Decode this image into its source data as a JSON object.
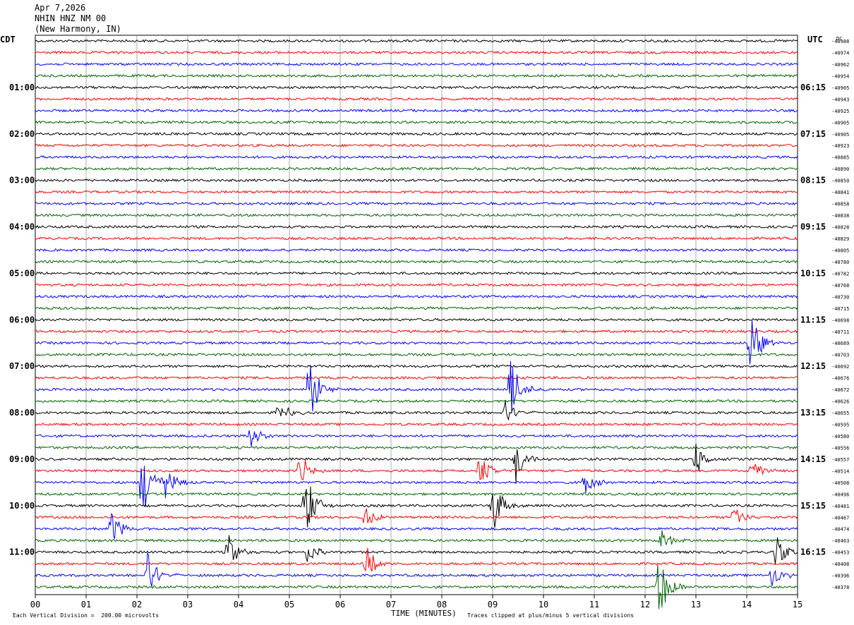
{
  "header": {
    "date": "Apr 7,2026",
    "station": "NHIN HNZ NM 00",
    "location": "(New Harmony, IN)"
  },
  "left_tz_label": "CDT",
  "right_tz_label": "UTC",
  "dc_label": "DC",
  "footer": {
    "scale_note": "Each Vertical Division =  200.00 microvolts",
    "xaxis_title": "TIME (MINUTES)",
    "clip_note": "Traces clipped at plus/minus 5 vertical divisions"
  },
  "colors": [
    "#000000",
    "#ff0000",
    "#0000ff",
    "#006400"
  ],
  "chart_data": {
    "type": "line",
    "x_unit": "minutes",
    "xlim": [
      0,
      15
    ],
    "x_ticks": [
      "00",
      "01",
      "02",
      "03",
      "04",
      "05",
      "06",
      "07",
      "08",
      "09",
      "10",
      "11",
      "12",
      "13",
      "14",
      "15"
    ],
    "trace_minutes": 15,
    "left_hour_labels": [
      "01:00",
      "02:00",
      "03:00",
      "04:00",
      "05:00",
      "06:00",
      "07:00",
      "08:00",
      "09:00",
      "10:00",
      "11:00"
    ],
    "right_hour_labels": [
      "06:15",
      "07:15",
      "08:15",
      "09:15",
      "10:15",
      "11:15",
      "12:15",
      "13:15",
      "14:15",
      "15:15",
      "16:15"
    ],
    "dc_offsets": [
      "-40988",
      "-40974",
      "-40962",
      "-40954",
      "-40905",
      "-40943",
      "-40925",
      "-40905",
      "-40905",
      "-40923",
      "-40885",
      "-40890",
      "-40850",
      "-40841",
      "-40858",
      "-40838",
      "-40828",
      "-40829",
      "-40805",
      "-40780",
      "-40782",
      "-40768",
      "-40730",
      "-40715",
      "-40698",
      "-40711",
      "-40689",
      "-40703",
      "-40692",
      "-40676",
      "-40672",
      "-40626",
      "-40655",
      "-40595",
      "-40580",
      "-40556",
      "-40557",
      "-40514",
      "-40508",
      "-40496",
      "-40481",
      "-40467",
      "-40474",
      "-40463",
      "-40453",
      "-40408",
      "-40396",
      "-40378"
    ],
    "events": [
      {
        "trace": 26,
        "minute": 14.05,
        "amp": 6
      },
      {
        "trace": 30,
        "minute": 5.4,
        "amp": 5
      },
      {
        "trace": 30,
        "minute": 9.35,
        "amp": 5
      },
      {
        "trace": 32,
        "minute": 4.8,
        "amp": 2
      },
      {
        "trace": 32,
        "minute": 9.25,
        "amp": 2
      },
      {
        "trace": 34,
        "minute": 4.25,
        "amp": 2
      },
      {
        "trace": 36,
        "minute": 9.45,
        "amp": 4
      },
      {
        "trace": 36,
        "minute": 13.0,
        "amp": 3
      },
      {
        "trace": 37,
        "minute": 5.2,
        "amp": 3
      },
      {
        "trace": 37,
        "minute": 8.75,
        "amp": 3
      },
      {
        "trace": 37,
        "minute": 14.1,
        "amp": 2
      },
      {
        "trace": 38,
        "minute": 2.1,
        "amp": 6
      },
      {
        "trace": 38,
        "minute": 2.55,
        "amp": 3
      },
      {
        "trace": 38,
        "minute": 10.8,
        "amp": 2
      },
      {
        "trace": 40,
        "minute": 5.3,
        "amp": 6
      },
      {
        "trace": 40,
        "minute": 9.0,
        "amp": 5
      },
      {
        "trace": 41,
        "minute": 6.5,
        "amp": 2
      },
      {
        "trace": 41,
        "minute": 13.75,
        "amp": 2
      },
      {
        "trace": 42,
        "minute": 1.5,
        "amp": 3
      },
      {
        "trace": 43,
        "minute": 12.3,
        "amp": 2
      },
      {
        "trace": 44,
        "minute": 3.8,
        "amp": 3
      },
      {
        "trace": 44,
        "minute": 5.35,
        "amp": 2
      },
      {
        "trace": 44,
        "minute": 14.55,
        "amp": 3
      },
      {
        "trace": 45,
        "minute": 6.5,
        "amp": 3
      },
      {
        "trace": 46,
        "minute": 2.2,
        "amp": 4
      },
      {
        "trace": 46,
        "minute": 14.5,
        "amp": 2
      },
      {
        "trace": 47,
        "minute": 12.25,
        "amp": 6
      }
    ]
  }
}
